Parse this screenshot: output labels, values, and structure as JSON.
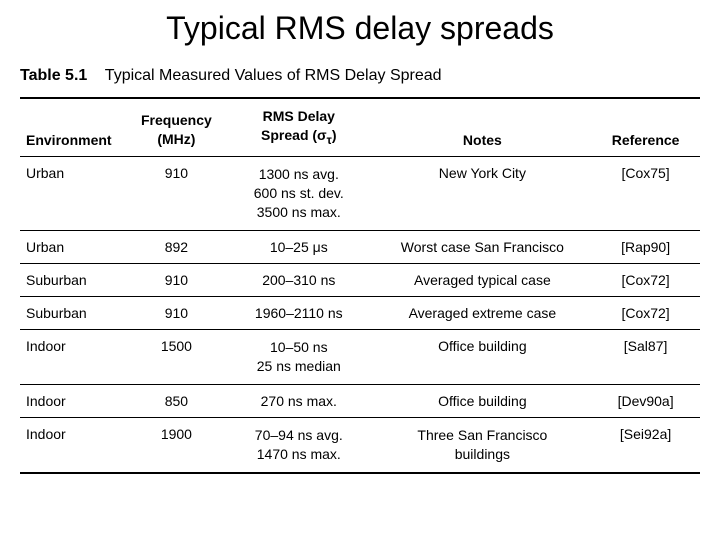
{
  "title": "Typical RMS delay spreads",
  "caption_num": "Table 5.1",
  "caption_text": "Typical Measured Values of RMS Delay Spread",
  "columns": {
    "env": "Environment",
    "freq_l1": "Frequency",
    "freq_l2": "(MHz)",
    "rms_l1": "RMS Delay",
    "rms_l2": "Spread (σ_τ)",
    "notes": "Notes",
    "ref": "Reference"
  },
  "rows": [
    {
      "env": "Urban",
      "freq": "910",
      "rms_l1": "1300 ns avg.",
      "rms_l2": "600 ns st. dev.",
      "rms_l3": "3500 ns max.",
      "notes": "New York City",
      "ref": "[Cox75]"
    },
    {
      "env": "Urban",
      "freq": "892",
      "rms_l1": "10–25 μs",
      "notes": "Worst case San Francisco",
      "ref": "[Rap90]"
    },
    {
      "env": "Suburban",
      "freq": "910",
      "rms_l1": "200–310 ns",
      "notes": "Averaged typical case",
      "ref": "[Cox72]"
    },
    {
      "env": "Suburban",
      "freq": "910",
      "rms_l1": "1960–2110 ns",
      "notes": "Averaged extreme case",
      "ref": "[Cox72]"
    },
    {
      "env": "Indoor",
      "freq": "1500",
      "rms_l1": "10–50 ns",
      "rms_l2": "25 ns median",
      "notes": "Office building",
      "ref": "[Sal87]"
    },
    {
      "env": "Indoor",
      "freq": "850",
      "rms_l1": "270 ns max.",
      "notes": "Office building",
      "ref": "[Dev90a]"
    },
    {
      "env": "Indoor",
      "freq": "1900",
      "rms_l1": "70–94 ns avg.",
      "rms_l2": "1470 ns max.",
      "notes_l1": "Three San Francisco",
      "notes_l2": "buildings",
      "ref": "[Sei92a]"
    }
  ]
}
